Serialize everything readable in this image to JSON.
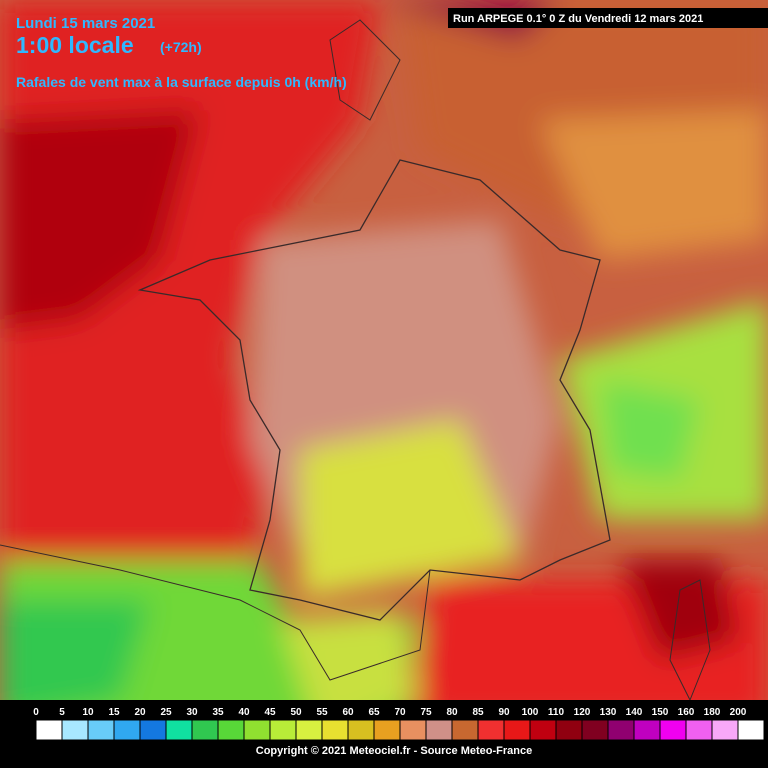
{
  "header": {
    "date": "Lundi 15 mars 2021",
    "time": "1:00 locale",
    "lead": "(+72h)",
    "subtitle": "Rafales de vent max à la surface depuis 0h (km/h)",
    "run": "Run ARPEGE 0.1° 0 Z du Vendredi 12 mars 2021"
  },
  "legend": {
    "stops": [
      0,
      5,
      10,
      15,
      20,
      25,
      30,
      35,
      40,
      45,
      50,
      55,
      60,
      65,
      70,
      75,
      80,
      85,
      90,
      100,
      110,
      120,
      130,
      140,
      150,
      160,
      180,
      200
    ],
    "colors": [
      "#ffffff",
      "#a8e8ff",
      "#68ccf8",
      "#30a8f0",
      "#1478e0",
      "#10e0a0",
      "#30c850",
      "#58d838",
      "#90e030",
      "#b8ec38",
      "#d8f040",
      "#e8e030",
      "#d8c020",
      "#e8a020",
      "#e89060",
      "#d09088",
      "#c86830",
      "#f03030",
      "#e81818",
      "#c00010",
      "#900010",
      "#800020",
      "#900070",
      "#c000c0",
      "#f000f0",
      "#f060f0",
      "#f8a8f8",
      "#ffffff"
    ]
  },
  "footer": {
    "copyright": "Copyright © 2021 Meteociel.fr - Source Meteo-France"
  }
}
